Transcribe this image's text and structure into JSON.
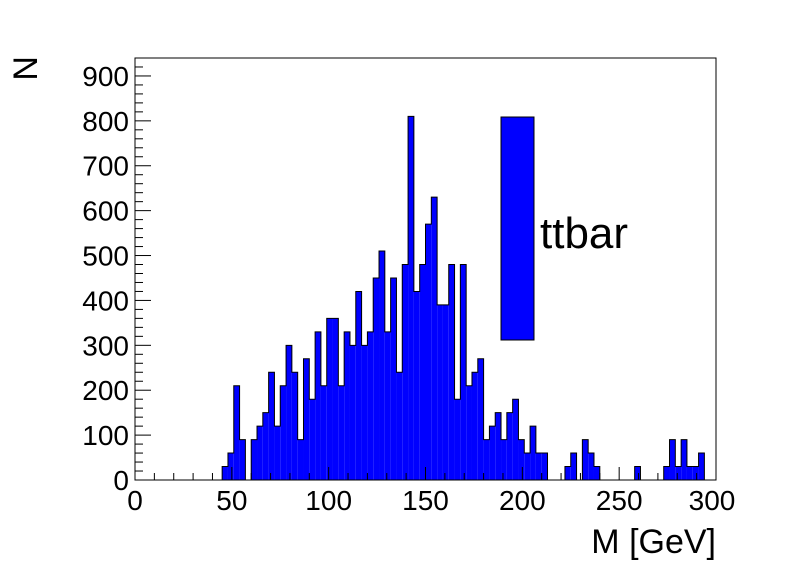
{
  "chart_data": {
    "type": "bar",
    "title": "",
    "xlabel": "M [GeV]",
    "ylabel": "N",
    "xlim": [
      0,
      300
    ],
    "ylim": [
      0,
      940
    ],
    "bin_width": 3,
    "x_ticks": [
      0,
      50,
      100,
      150,
      200,
      250,
      300
    ],
    "y_ticks": [
      0,
      100,
      200,
      300,
      400,
      500,
      600,
      700,
      800,
      900
    ],
    "grid": false,
    "legend": {
      "position": "top-right",
      "entries": [
        "ttbar"
      ]
    },
    "series": [
      {
        "name": "ttbar",
        "color": "#0000ff",
        "values": [
          0,
          0,
          0,
          0,
          0,
          0,
          0,
          0,
          0,
          0,
          0,
          0,
          0,
          0,
          0,
          30,
          60,
          210,
          90,
          0,
          90,
          120,
          150,
          240,
          120,
          210,
          300,
          240,
          90,
          270,
          180,
          330,
          210,
          360,
          360,
          210,
          330,
          300,
          420,
          300,
          330,
          450,
          510,
          330,
          450,
          240,
          480,
          810,
          420,
          480,
          570,
          630,
          390,
          390,
          480,
          180,
          480,
          210,
          240,
          270,
          90,
          120,
          150,
          90,
          150,
          180,
          90,
          60,
          120,
          60,
          60,
          0,
          0,
          0,
          30,
          60,
          0,
          90,
          60,
          30,
          0,
          0,
          0,
          0,
          0,
          0,
          30,
          0,
          0,
          0,
          0,
          30,
          90,
          30,
          90,
          30,
          30,
          60,
          0,
          0
        ]
      }
    ]
  }
}
